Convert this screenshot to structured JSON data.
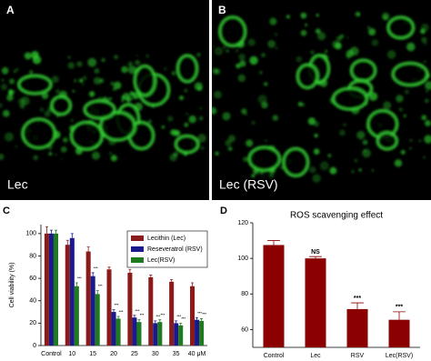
{
  "images": [
    {
      "label": "A",
      "caption": "Lec"
    },
    {
      "label": "B",
      "caption": "Lec (RSV)"
    }
  ],
  "chart_data": [
    {
      "type": "bar",
      "label": "C",
      "ylabel": "Cell viability (%)",
      "categories": [
        "Control",
        "10",
        "15",
        "20",
        "25",
        "30",
        "35",
        "40 μM"
      ],
      "series": [
        {
          "name": "Lecithin (Lec)",
          "color": "#8b1a1a",
          "values": [
            100,
            90,
            84,
            68,
            65,
            61,
            57,
            53
          ],
          "errors": [
            6,
            4,
            4,
            2,
            3,
            2,
            2,
            3
          ],
          "annotations": [
            null,
            null,
            null,
            null,
            null,
            null,
            null,
            null
          ]
        },
        {
          "name": "Reseveratrol (RSV)",
          "color": "#1a1a8c",
          "values": [
            100,
            96,
            62,
            30,
            25,
            20,
            20,
            23
          ],
          "errors": [
            3,
            4,
            3,
            2,
            2,
            2,
            2,
            2
          ],
          "annotations": [
            null,
            null,
            "***",
            "***",
            "***",
            "***",
            "***",
            "***"
          ]
        },
        {
          "name": "Lec(RSV)",
          "color": "#1f7a1f",
          "values": [
            100,
            53,
            46,
            24,
            21,
            21,
            18,
            22
          ],
          "errors": [
            3,
            3,
            3,
            2,
            2,
            2,
            2,
            2
          ],
          "annotations": [
            null,
            "***",
            "***",
            "***",
            "***",
            "***",
            "***",
            "***"
          ]
        }
      ],
      "ylim": [
        0,
        108
      ],
      "yticks": [
        0,
        20,
        40,
        60,
        80,
        100
      ]
    },
    {
      "type": "bar",
      "label": "D",
      "title": "ROS scavenging effect",
      "categories": [
        "Control",
        "Lec",
        "RSV",
        "Lec(RSV)"
      ],
      "values": [
        107.5,
        100,
        71.5,
        65.5
      ],
      "errors": [
        2.5,
        1,
        3.5,
        4.5
      ],
      "annotations": [
        null,
        "NS",
        "***",
        "***"
      ],
      "color": "#8b0000",
      "ylim": [
        50,
        120
      ],
      "yticks": [
        60,
        80,
        100,
        120
      ]
    }
  ]
}
